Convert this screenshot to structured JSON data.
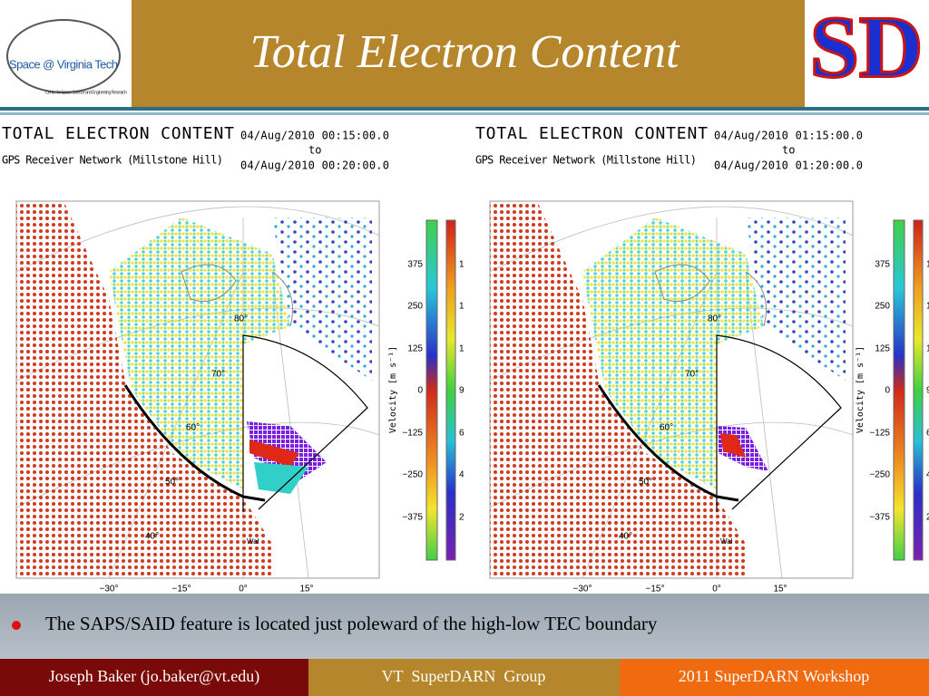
{
  "header": {
    "title": "Total Electron Content",
    "logo_left": "Space @ Virginia Tech",
    "logo_left_sub": "Center for Space Science and Engineering Research",
    "logo_right": "SD"
  },
  "panels": [
    {
      "title": "TOTAL ELECTRON CONTENT",
      "network": "GPS Receiver Network (Millstone Hill)",
      "from": "04/Aug/2010 00:15:00.0",
      "to_word": "to",
      "to": "04/Aug/2010 00:20:00.0",
      "lat_labels": [
        "80°",
        "70°",
        "60°",
        "50°",
        "40°"
      ],
      "lon_labels": [
        "−30°",
        "−15°",
        "0°",
        "15°"
      ],
      "site": "Wal",
      "velocity_label": "Velocity [m s⁻¹]",
      "velocity_ticks": [
        "375",
        "250",
        "125",
        "0",
        "−125",
        "−250",
        "−375"
      ],
      "tec_ticks": [
        "1",
        "1",
        "1",
        "9",
        "6",
        "4",
        "2"
      ]
    },
    {
      "title": "TOTAL ELECTRON CONTENT",
      "network": "GPS Receiver Network (Millstone Hill)",
      "from": "04/Aug/2010 01:15:00.0",
      "to_word": "to",
      "to": "04/Aug/2010 01:20:00.0",
      "lat_labels": [
        "80°",
        "70°",
        "60°",
        "50°",
        "40°"
      ],
      "lon_labels": [
        "−30°",
        "−15°",
        "0°",
        "15°"
      ],
      "site": "Wal",
      "velocity_label": "Velocity [m s⁻¹]",
      "velocity_ticks": [
        "375",
        "250",
        "125",
        "0",
        "−125",
        "−250",
        "−375"
      ],
      "tec_ticks": [
        "1",
        "1",
        "1",
        "9",
        "6",
        "4",
        "2"
      ]
    }
  ],
  "bullet": "The SAPS/SAID feature is located just poleward of the high-low TEC boundary",
  "footer": {
    "author": "Joseph Baker (jo.baker@vt.edu)",
    "group": "VT  SuperDARN  Group",
    "event": "2011 SuperDARN Workshop"
  }
}
